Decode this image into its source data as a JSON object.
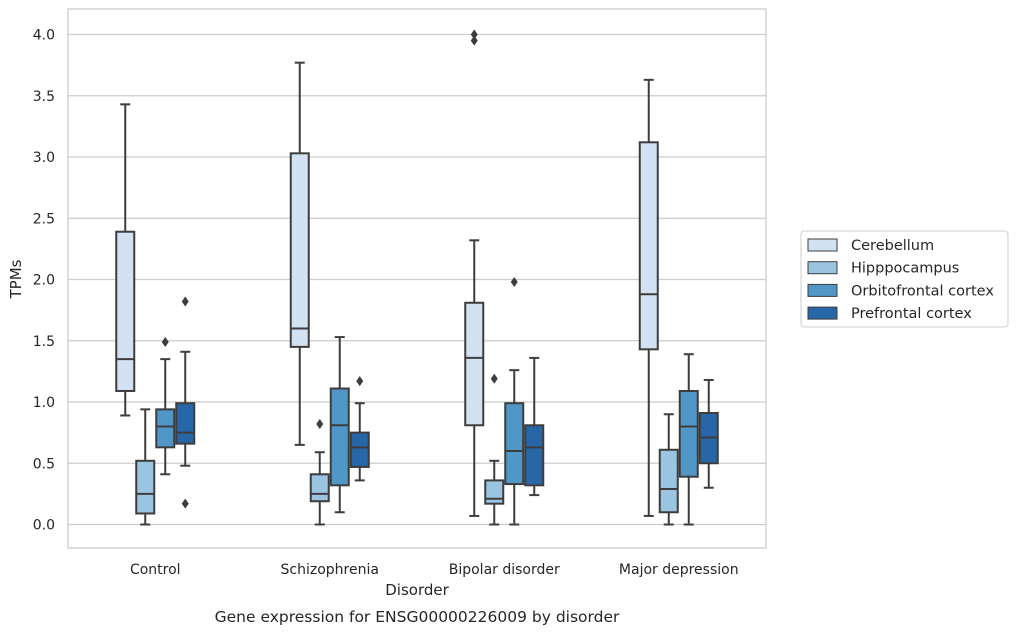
{
  "chart_data": {
    "type": "box",
    "caption": "Gene expression for ENSG00000226009 by disorder",
    "xlabel": "Disorder",
    "ylabel": "TPMs",
    "ylim": [
      -0.19,
      4.2
    ],
    "yticks": [
      "0.0",
      "0.5",
      "1.0",
      "1.5",
      "2.0",
      "2.5",
      "3.0",
      "3.5",
      "4.0"
    ],
    "grid": "horizontal",
    "legend_position": "right",
    "categories": [
      "Control",
      "Schizophrenia",
      "Bipolar disorder",
      "Major depression"
    ],
    "series": [
      {
        "name": "Cerebellum",
        "color": "#d2e2f2",
        "boxes": [
          {
            "whisker_low": 0.89,
            "q1": 1.09,
            "median": 1.35,
            "q3": 2.39,
            "whisker_high": 3.43,
            "outliers": []
          },
          {
            "whisker_low": 0.65,
            "q1": 1.45,
            "median": 1.6,
            "q3": 3.03,
            "whisker_high": 3.77,
            "outliers": []
          },
          {
            "whisker_low": 0.07,
            "q1": 0.81,
            "median": 1.36,
            "q3": 1.81,
            "whisker_high": 2.32,
            "outliers": [
              3.95,
              4.0
            ]
          },
          {
            "whisker_low": 0.07,
            "q1": 1.43,
            "median": 1.88,
            "q3": 3.12,
            "whisker_high": 3.63,
            "outliers": []
          }
        ]
      },
      {
        "name": "Hipppocampus",
        "color": "#9ac4df",
        "boxes": [
          {
            "whisker_low": 0.0,
            "q1": 0.09,
            "median": 0.25,
            "q3": 0.52,
            "whisker_high": 0.94,
            "outliers": []
          },
          {
            "whisker_low": 0.0,
            "q1": 0.19,
            "median": 0.25,
            "q3": 0.41,
            "whisker_high": 0.59,
            "outliers": [
              0.82
            ]
          },
          {
            "whisker_low": 0.0,
            "q1": 0.17,
            "median": 0.21,
            "q3": 0.36,
            "whisker_high": 0.52,
            "outliers": [
              1.19
            ]
          },
          {
            "whisker_low": 0.0,
            "q1": 0.1,
            "median": 0.29,
            "q3": 0.61,
            "whisker_high": 0.9,
            "outliers": []
          }
        ]
      },
      {
        "name": "Orbitofrontal cortex",
        "color": "#5096c6",
        "boxes": [
          {
            "whisker_low": 0.41,
            "q1": 0.63,
            "median": 0.8,
            "q3": 0.94,
            "whisker_high": 1.35,
            "outliers": [
              1.49
            ]
          },
          {
            "whisker_low": 0.1,
            "q1": 0.32,
            "median": 0.81,
            "q3": 1.11,
            "whisker_high": 1.53,
            "outliers": []
          },
          {
            "whisker_low": 0.0,
            "q1": 0.33,
            "median": 0.6,
            "q3": 0.99,
            "whisker_high": 1.26,
            "outliers": [
              1.98
            ]
          },
          {
            "whisker_low": 0.0,
            "q1": 0.39,
            "median": 0.8,
            "q3": 1.09,
            "whisker_high": 1.39,
            "outliers": []
          }
        ]
      },
      {
        "name": "Prefrontal cortex",
        "color": "#2767a8",
        "boxes": [
          {
            "whisker_low": 0.48,
            "q1": 0.66,
            "median": 0.75,
            "q3": 0.99,
            "whisker_high": 1.41,
            "outliers": [
              0.17,
              1.82
            ]
          },
          {
            "whisker_low": 0.36,
            "q1": 0.47,
            "median": 0.63,
            "q3": 0.75,
            "whisker_high": 0.99,
            "outliers": [
              1.17
            ]
          },
          {
            "whisker_low": 0.24,
            "q1": 0.32,
            "median": 0.63,
            "q3": 0.81,
            "whisker_high": 1.36,
            "outliers": []
          },
          {
            "whisker_low": 0.3,
            "q1": 0.5,
            "median": 0.71,
            "q3": 0.91,
            "whisker_high": 1.18,
            "outliers": []
          }
        ]
      }
    ]
  }
}
